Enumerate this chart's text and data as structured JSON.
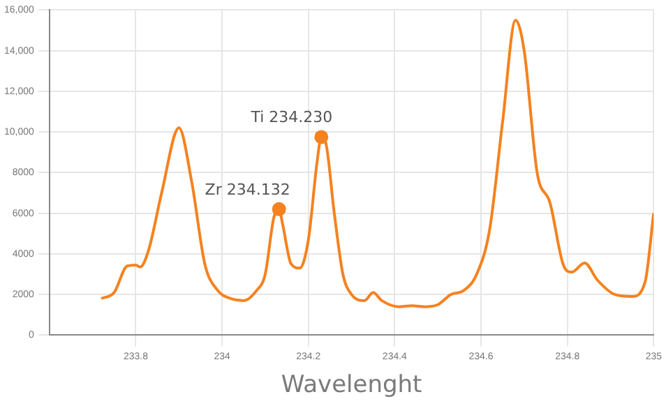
{
  "chart_data": {
    "type": "line",
    "xlabel": "Wavelenght",
    "color": "#f5821f",
    "marker": "none",
    "grid": true,
    "legend": false,
    "x": [
      233.72,
      233.75,
      233.78,
      233.8,
      233.81,
      233.83,
      233.86,
      233.9,
      233.93,
      233.96,
      233.99,
      234.02,
      234.05,
      234.08,
      234.1,
      234.12,
      234.132,
      234.14,
      234.16,
      234.18,
      234.2,
      234.22,
      234.23,
      234.24,
      234.26,
      234.28,
      234.3,
      234.33,
      234.35,
      234.37,
      234.41,
      234.44,
      234.47,
      234.5,
      234.53,
      234.56,
      234.59,
      234.62,
      234.65,
      234.68,
      234.7,
      234.73,
      234.76,
      234.79,
      234.81,
      234.84,
      234.87,
      234.91,
      234.95,
      234.98,
      235
    ],
    "values": [
      1800,
      2100,
      3400,
      3450,
      3350,
      4200,
      7000,
      10200,
      7500,
      3500,
      2200,
      1800,
      1700,
      2200,
      3000,
      5800,
      6200,
      5500,
      3500,
      3300,
      4700,
      8500,
      9750,
      9500,
      6000,
      3000,
      2000,
      1700,
      2100,
      1700,
      1400,
      1450,
      1400,
      1500,
      2000,
      2200,
      3000,
      5200,
      10500,
      15500,
      14000,
      8000,
      6500,
      3500,
      3100,
      3550,
      2700,
      2000,
      1900,
      2600,
      6000
    ],
    "xlim": [
      233.6,
      235
    ],
    "xticks": [
      233.8,
      234,
      234.2,
      234.4,
      234.6,
      234.8,
      235
    ],
    "ylim": [
      0,
      16000
    ],
    "yticks": [
      0,
      2000,
      4000,
      6000,
      8000,
      {
        "value": 10000,
        "label": "10,000"
      },
      {
        "value": 12000,
        "label": "12,000"
      },
      {
        "value": 14000,
        "label": "14,000"
      },
      {
        "value": 16000,
        "label": "16,000"
      }
    ],
    "annotations": [
      {
        "text": "Zr 234.132",
        "x": 234.132,
        "y": 6200
      },
      {
        "text": "Ti 234.230",
        "x": 234.23,
        "y": 9750
      }
    ]
  }
}
